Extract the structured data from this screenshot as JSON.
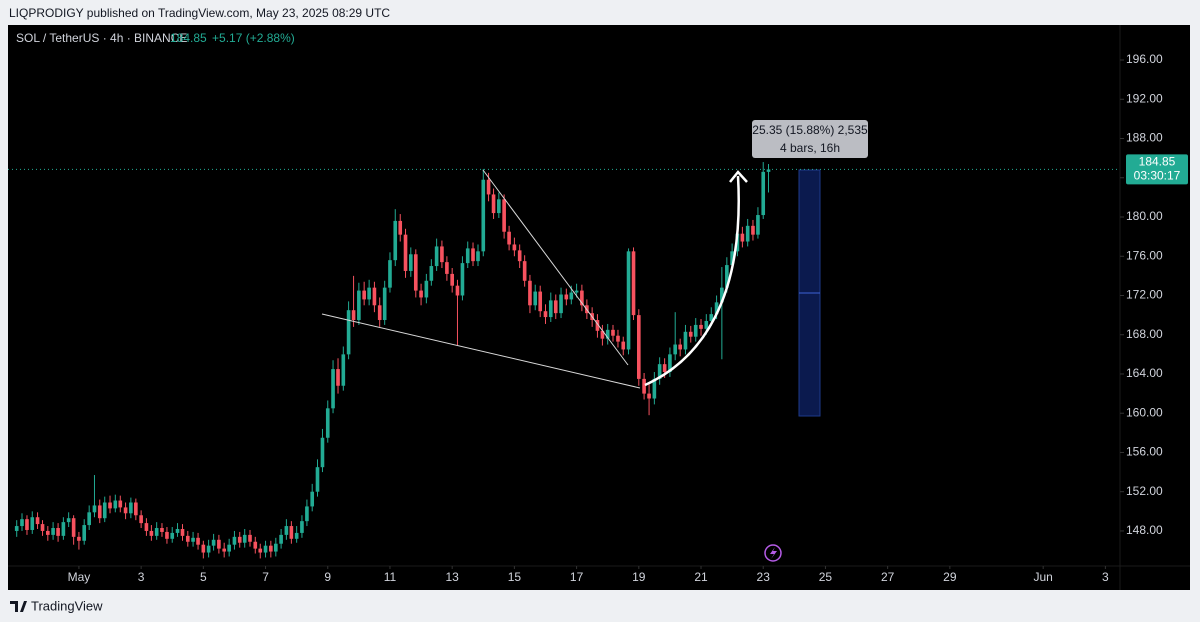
{
  "header": {
    "published": "LIQPRODIGY published on TradingView.com, May 23, 2025 08:29 UTC"
  },
  "footer": {
    "brand": "TradingView"
  },
  "chart_data": {
    "type": "candlestick",
    "symbol": "SOL / TetherUS · 4h · BINANCE",
    "change": "+5.17 (+2.88%)",
    "last_price": 184.85,
    "countdown": "03:30:17",
    "measure": {
      "line1": "25.35 (15.88%) 2,535",
      "line2": "4 bars, 16h"
    },
    "up_color": "#22ab94",
    "down_color": "#f7525f",
    "xlim": [
      -1.28,
      34.47
    ],
    "xticks": [
      {
        "value": 1,
        "label": "May"
      },
      3,
      5,
      7,
      9,
      11,
      13,
      15,
      17,
      19,
      21,
      23,
      25,
      27,
      29,
      {
        "value": 32,
        "label": "Jun"
      },
      {
        "value": 34,
        "label": "3"
      }
    ],
    "ylim": [
      144.53,
      199.57
    ],
    "yticks": [
      {
        "value": 148,
        "label": "148.00"
      },
      {
        "value": 152,
        "label": "152.00"
      },
      {
        "value": 156,
        "label": "156.00"
      },
      {
        "value": 160,
        "label": "160.00"
      },
      {
        "value": 164,
        "label": "164.00"
      },
      {
        "value": 168,
        "label": "168.00"
      },
      {
        "value": 172,
        "label": "172.00"
      },
      {
        "value": 176,
        "label": "176.00"
      },
      {
        "value": 180,
        "label": "180.00"
      },
      {
        "value": 184,
        "label": "184.00"
      },
      {
        "value": 188,
        "label": "188.00"
      },
      {
        "value": 192,
        "label": "192.00"
      },
      {
        "value": 196,
        "label": "196.00"
      }
    ],
    "grid": false,
    "x": [
      -1,
      -0.83,
      -0.67,
      -0.5,
      -0.33,
      -0.17,
      0,
      0.17,
      0.33,
      0.5,
      0.67,
      0.83,
      1,
      1.17,
      1.33,
      1.5,
      1.67,
      1.83,
      2,
      2.17,
      2.33,
      2.5,
      2.67,
      2.83,
      3,
      3.17,
      3.33,
      3.5,
      3.67,
      3.83,
      4,
      4.17,
      4.33,
      4.5,
      4.67,
      4.83,
      5,
      5.17,
      5.33,
      5.5,
      5.67,
      5.83,
      6,
      6.17,
      6.33,
      6.5,
      6.67,
      6.83,
      7,
      7.17,
      7.33,
      7.5,
      7.67,
      7.83,
      8,
      8.17,
      8.33,
      8.5,
      8.67,
      8.83,
      9,
      9.17,
      9.33,
      9.5,
      9.67,
      9.83,
      10,
      10.17,
      10.33,
      10.5,
      10.67,
      10.83,
      11,
      11.17,
      11.33,
      11.5,
      11.67,
      11.83,
      12,
      12.17,
      12.33,
      12.5,
      12.67,
      12.83,
      13,
      13.17,
      13.33,
      13.5,
      13.67,
      13.83,
      14,
      14.17,
      14.33,
      14.5,
      14.67,
      14.83,
      15,
      15.17,
      15.33,
      15.5,
      15.67,
      15.83,
      16,
      16.17,
      16.33,
      16.5,
      16.67,
      16.83,
      17,
      17.17,
      17.33,
      17.5,
      17.67,
      17.83,
      18,
      18.17,
      18.33,
      18.5,
      18.67,
      18.83,
      19,
      19.17,
      19.33,
      19.5,
      19.67,
      19.83,
      20,
      20.17,
      20.33,
      20.5,
      20.67,
      20.83,
      21,
      21.17,
      21.33,
      21.5,
      21.67,
      21.83,
      22,
      22.17,
      22.33,
      22.5,
      22.67,
      22.83,
      23,
      23.17
    ],
    "open": [
      148.0,
      148.5,
      149.2,
      148.1,
      149.4,
      148.7,
      148.0,
      147.6,
      148.3,
      147.5,
      148.9,
      149.3,
      147.4,
      147.0,
      148.6,
      149.9,
      150.6,
      149.3,
      150.9,
      150.3,
      151.1,
      150.4,
      149.8,
      150.9,
      149.6,
      148.8,
      148.0,
      147.5,
      148.3,
      147.9,
      147.2,
      147.8,
      148.2,
      147.5,
      146.9,
      147.3,
      146.6,
      145.8,
      146.5,
      147.1,
      146.2,
      145.9,
      146.6,
      147.4,
      146.8,
      147.6,
      146.9,
      146.2,
      145.8,
      146.5,
      145.9,
      146.7,
      147.6,
      148.5,
      147.2,
      147.8,
      149.0,
      150.5,
      152.0,
      154.5,
      157.5,
      160.5,
      164.5,
      162.8,
      166.0,
      170.5,
      169.5,
      172.5,
      171.6,
      172.8,
      171.0,
      169.5,
      172.8,
      175.6,
      179.6,
      178.2,
      174.5,
      176.2,
      172.5,
      171.8,
      173.5,
      175.0,
      177.0,
      175.4,
      174.2,
      173.0,
      172.0,
      175.3,
      176.8,
      175.5,
      176.5,
      183.8,
      182.3,
      180.4,
      181.8,
      178.5,
      177.2,
      176.6,
      175.5,
      173.5,
      171.0,
      172.4,
      170.4,
      169.8,
      171.5,
      170.2,
      172.1,
      171.6,
      172.3,
      172.5,
      171.0,
      170.2,
      169.5,
      168.4,
      167.6,
      168.5,
      167.9,
      167.3,
      166.5,
      176.5,
      170.0,
      163.5,
      162.0,
      161.5,
      163.5,
      165.0,
      164.2,
      166.0,
      167.0,
      166.5,
      168.3,
      167.8,
      169.0,
      168.6,
      169.4,
      170.1,
      171.3,
      172.8,
      175.1,
      176.5,
      178.3,
      177.5,
      179.1,
      178.2,
      180.2,
      184.6
    ],
    "high": [
      149.1,
      149.8,
      149.6,
      150.0,
      149.9,
      149.1,
      148.5,
      148.9,
      148.8,
      149.4,
      149.9,
      149.6,
      147.9,
      149.2,
      150.6,
      153.7,
      151.2,
      151.5,
      151.6,
      151.7,
      151.6,
      150.9,
      151.4,
      151.3,
      150.1,
      149.3,
      148.6,
      148.9,
      148.8,
      148.4,
      148.4,
      148.8,
      148.7,
      148.0,
      147.9,
      147.8,
      147.0,
      147.1,
      147.7,
      147.6,
      146.8,
      147.2,
      148.0,
      147.9,
      148.2,
      148.1,
      147.4,
      146.7,
      147.0,
      147.0,
      147.3,
      148.2,
      149.2,
      149.0,
      148.5,
      149.6,
      151.2,
      152.8,
      155.3,
      158.4,
      161.3,
      165.4,
      165.6,
      166.8,
      171.4,
      174.0,
      173.3,
      173.4,
      173.6,
      173.4,
      171.8,
      173.5,
      176.4,
      180.8,
      180.3,
      178.8,
      176.9,
      176.7,
      173.2,
      174.2,
      175.7,
      177.8,
      177.6,
      176.0,
      174.8,
      173.6,
      176.0,
      177.5,
      177.4,
      177.2,
      184.9,
      184.5,
      182.9,
      182.5,
      182.3,
      179.1,
      177.9,
      177.2,
      176.1,
      174.1,
      173.1,
      173.0,
      171.1,
      172.3,
      172.1,
      172.8,
      172.7,
      173.0,
      173.2,
      173.1,
      171.6,
      170.8,
      170.1,
      169.0,
      169.1,
      169.0,
      168.5,
      167.8,
      176.8,
      176.9,
      170.6,
      164.1,
      163.0,
      164.2,
      165.7,
      165.6,
      166.7,
      170.3,
      167.6,
      169.0,
      168.9,
      169.7,
      169.6,
      170.1,
      170.8,
      172.0,
      174.9,
      175.9,
      177.3,
      179.1,
      179.0,
      179.8,
      179.7,
      181.0,
      185.6,
      185.4
    ],
    "low": [
      147.4,
      148.0,
      147.6,
      147.7,
      148.2,
      147.5,
      147.0,
      147.1,
      146.9,
      147.1,
      148.4,
      146.6,
      146.1,
      146.6,
      148.1,
      149.4,
      148.8,
      148.9,
      149.8,
      149.9,
      149.9,
      149.2,
      149.3,
      149.1,
      148.3,
      147.5,
      147.0,
      147.1,
      147.4,
      146.7,
      146.8,
      147.4,
      147.0,
      146.4,
      146.4,
      146.1,
      145.2,
      145.3,
      146.0,
      145.7,
      145.3,
      145.4,
      146.1,
      146.3,
      146.3,
      146.4,
      145.7,
      145.2,
      145.3,
      145.3,
      145.4,
      146.2,
      147.1,
      146.7,
      146.8,
      147.3,
      148.5,
      150.0,
      151.5,
      154.0,
      157.0,
      160.0,
      162.0,
      162.3,
      165.5,
      168.8,
      169.0,
      171.0,
      171.0,
      170.3,
      168.8,
      169.0,
      172.3,
      175.0,
      177.5,
      173.8,
      173.9,
      171.8,
      171.0,
      171.2,
      173.0,
      174.5,
      174.8,
      173.5,
      172.3,
      166.9,
      171.5,
      174.8,
      175.0,
      175.0,
      176.0,
      181.6,
      179.8,
      179.9,
      177.8,
      176.6,
      176.0,
      174.8,
      172.9,
      170.2,
      170.5,
      169.8,
      169.1,
      169.3,
      169.6,
      169.7,
      171.0,
      171.1,
      171.8,
      170.4,
      169.6,
      168.8,
      167.7,
      166.9,
      167.0,
      167.3,
      166.7,
      165.9,
      166.0,
      169.5,
      162.8,
      161.4,
      159.8,
      160.9,
      162.9,
      163.6,
      163.7,
      165.4,
      165.8,
      166.0,
      167.2,
      167.3,
      167.9,
      168.0,
      168.9,
      169.6,
      165.5,
      172.3,
      174.6,
      176.0,
      176.9,
      177.0,
      177.6,
      177.8,
      179.8,
      182.5
    ],
    "close": [
      148.5,
      149.2,
      148.1,
      149.4,
      148.7,
      148.0,
      147.6,
      148.3,
      147.5,
      148.9,
      149.3,
      147.4,
      147.0,
      148.6,
      149.9,
      150.6,
      149.3,
      150.9,
      150.3,
      151.1,
      150.4,
      149.8,
      150.9,
      149.6,
      148.8,
      148.0,
      147.5,
      148.3,
      147.9,
      147.2,
      147.8,
      148.2,
      147.5,
      146.9,
      147.3,
      146.6,
      145.8,
      146.5,
      147.1,
      146.2,
      145.9,
      146.6,
      147.4,
      146.8,
      147.6,
      146.9,
      146.2,
      145.8,
      146.5,
      145.9,
      146.7,
      147.6,
      148.5,
      147.2,
      147.8,
      149.0,
      150.5,
      152.0,
      154.5,
      157.5,
      160.5,
      164.5,
      162.8,
      166.0,
      170.5,
      169.5,
      172.5,
      171.6,
      172.8,
      171.0,
      169.5,
      172.8,
      175.6,
      179.6,
      178.2,
      174.5,
      176.2,
      172.5,
      171.8,
      173.5,
      175.0,
      177.0,
      175.4,
      174.2,
      173.0,
      172.0,
      175.3,
      176.8,
      175.5,
      176.5,
      183.8,
      182.3,
      180.4,
      181.8,
      178.5,
      177.2,
      176.6,
      175.5,
      173.5,
      171.0,
      172.4,
      170.4,
      169.8,
      171.5,
      170.2,
      172.1,
      171.6,
      172.3,
      172.5,
      171.0,
      170.2,
      169.5,
      168.4,
      167.6,
      168.5,
      167.9,
      167.3,
      166.5,
      176.5,
      170.0,
      163.5,
      162.0,
      161.5,
      163.5,
      165.0,
      164.2,
      166.0,
      167.0,
      166.5,
      168.3,
      167.8,
      169.0,
      168.6,
      169.4,
      170.1,
      171.3,
      172.8,
      175.1,
      176.5,
      178.3,
      177.5,
      179.1,
      178.2,
      180.2,
      184.6,
      184.85
    ]
  }
}
